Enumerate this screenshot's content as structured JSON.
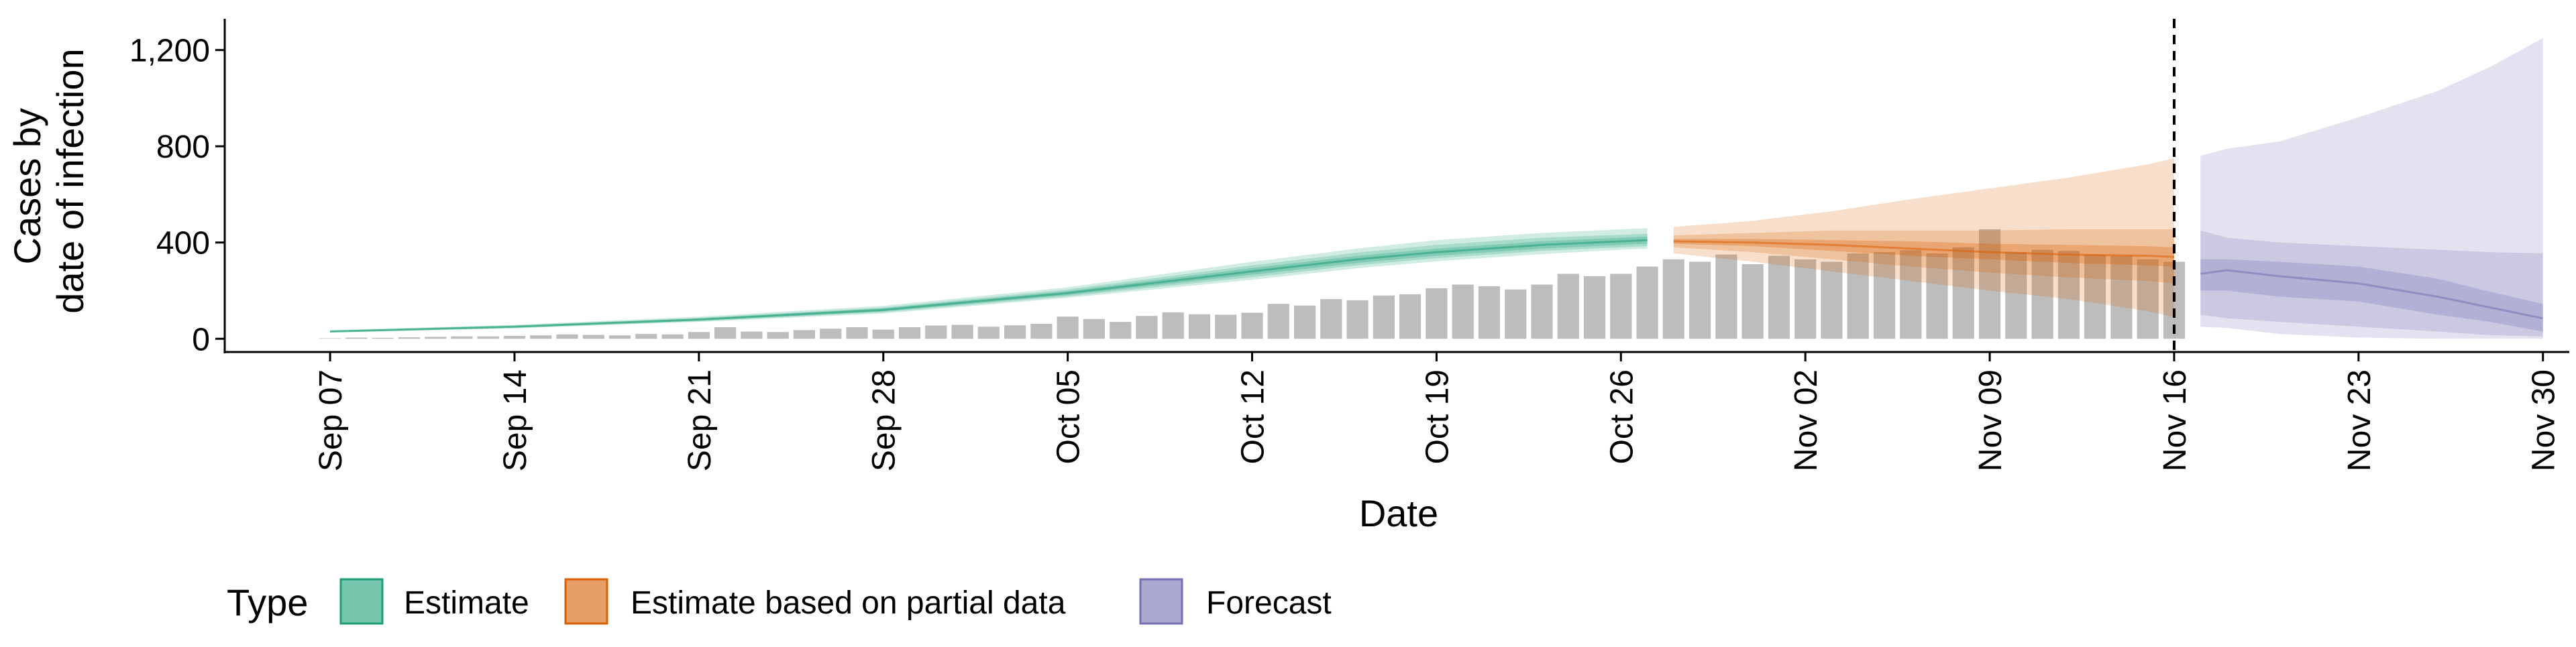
{
  "chart_data": {
    "type": "area",
    "xlabel": "Date",
    "ylabel_lines": [
      "Cases by",
      "date of infection"
    ],
    "x_domain": [
      "2020-09-03",
      "2020-12-01"
    ],
    "ylim": [
      -55,
      1330
    ],
    "y_ticks": [
      0,
      400,
      800,
      1200
    ],
    "y_tick_labels": [
      "0",
      "400",
      "800",
      "1,200"
    ],
    "x_ticks": [
      "2020-09-07",
      "2020-09-14",
      "2020-09-21",
      "2020-09-28",
      "2020-10-05",
      "2020-10-12",
      "2020-10-19",
      "2020-10-26",
      "2020-11-02",
      "2020-11-09",
      "2020-11-16",
      "2020-11-23",
      "2020-11-30"
    ],
    "x_tick_labels": [
      "Sep 07",
      "Sep 14",
      "Sep 21",
      "Sep 28",
      "Oct 05",
      "Oct 12",
      "Oct 19",
      "Oct 26",
      "Nov 02",
      "Nov 09",
      "Nov 16",
      "Nov 23",
      "Nov 30"
    ],
    "grid": false,
    "vline": "2020-11-16",
    "reported_cases": {
      "start": "2020-09-07",
      "values": [
        2,
        5,
        4,
        6,
        8,
        10,
        10,
        12,
        14,
        18,
        16,
        14,
        20,
        18,
        28,
        48,
        30,
        28,
        36,
        42,
        48,
        38,
        48,
        55,
        58,
        50,
        56,
        62,
        92,
        82,
        70,
        95,
        110,
        102,
        100,
        108,
        145,
        138,
        165,
        160,
        180,
        185,
        210,
        225,
        218,
        205,
        225,
        270,
        260,
        270,
        300,
        330,
        320,
        350,
        310,
        345,
        330,
        320,
        355,
        360,
        368,
        355,
        380,
        455,
        360,
        370,
        365,
        350,
        345,
        330,
        320
      ]
    },
    "series": [
      {
        "name": "Estimate",
        "color": "#1b9e77",
        "dates": [
          "2020-09-07",
          "2020-09-14",
          "2020-09-21",
          "2020-09-28",
          "2020-10-05",
          "2020-10-12",
          "2020-10-16",
          "2020-10-19",
          "2020-10-23",
          "2020-10-26",
          "2020-10-27"
        ],
        "median": [
          30,
          50,
          80,
          120,
          190,
          280,
          330,
          360,
          390,
          405,
          410
        ],
        "inner_low": [
          28,
          47,
          76,
          114,
          182,
          266,
          315,
          345,
          375,
          390,
          395
        ],
        "inner_high": [
          33,
          53,
          84,
          126,
          198,
          294,
          345,
          375,
          405,
          420,
          425
        ],
        "mid_low": [
          27,
          45,
          73,
          110,
          176,
          256,
          305,
          335,
          365,
          380,
          385
        ],
        "mid_high": [
          34,
          55,
          87,
          130,
          205,
          305,
          358,
          390,
          420,
          432,
          436
        ],
        "outer_low": [
          26,
          43,
          70,
          105,
          170,
          245,
          293,
          322,
          352,
          370,
          375
        ],
        "outer_high": [
          36,
          58,
          92,
          137,
          214,
          320,
          375,
          410,
          440,
          455,
          460
        ]
      },
      {
        "name": "Estimate based on partial data",
        "color": "#d95f02",
        "dates": [
          "2020-10-28",
          "2020-10-31",
          "2020-11-03",
          "2020-11-06",
          "2020-11-09",
          "2020-11-12",
          "2020-11-15",
          "2020-11-16"
        ],
        "median": [
          405,
          400,
          390,
          375,
          360,
          350,
          345,
          340
        ],
        "inner_low": [
          395,
          385,
          365,
          345,
          330,
          315,
          305,
          300
        ],
        "inner_high": [
          415,
          415,
          410,
          405,
          395,
          390,
          385,
          380
        ],
        "mid_low": [
          380,
          360,
          330,
          300,
          275,
          255,
          240,
          230
        ],
        "mid_high": [
          430,
          440,
          450,
          450,
          450,
          455,
          455,
          455
        ],
        "outer_low": [
          355,
          320,
          280,
          240,
          200,
          165,
          115,
          90
        ],
        "outer_high": [
          465,
          490,
          530,
          580,
          625,
          670,
          725,
          750
        ]
      },
      {
        "name": "Forecast",
        "color": "#7570b3",
        "dates": [
          "2020-11-17",
          "2020-11-18",
          "2020-11-20",
          "2020-11-23",
          "2020-11-26",
          "2020-11-28",
          "2020-11-30"
        ],
        "median": [
          270,
          285,
          260,
          230,
          175,
          130,
          85
        ],
        "inner_low": [
          200,
          200,
          175,
          155,
          100,
          70,
          30
        ],
        "inner_high": [
          330,
          330,
          320,
          300,
          250,
          195,
          145
        ],
        "mid_low": [
          100,
          85,
          70,
          50,
          30,
          15,
          10
        ],
        "mid_high": [
          450,
          420,
          400,
          385,
          370,
          360,
          355
        ],
        "outer_low": [
          50,
          45,
          20,
          5,
          0,
          0,
          0
        ],
        "outer_high": [
          760,
          790,
          820,
          920,
          1030,
          1130,
          1250
        ]
      }
    ],
    "legend": {
      "title": "Type",
      "position": "bottom",
      "items": [
        {
          "label": "Estimate",
          "color": "#1b9e77"
        },
        {
          "label": "Estimate based on partial data",
          "color": "#d95f02"
        },
        {
          "label": "Forecast",
          "color": "#7570b3"
        }
      ]
    }
  }
}
